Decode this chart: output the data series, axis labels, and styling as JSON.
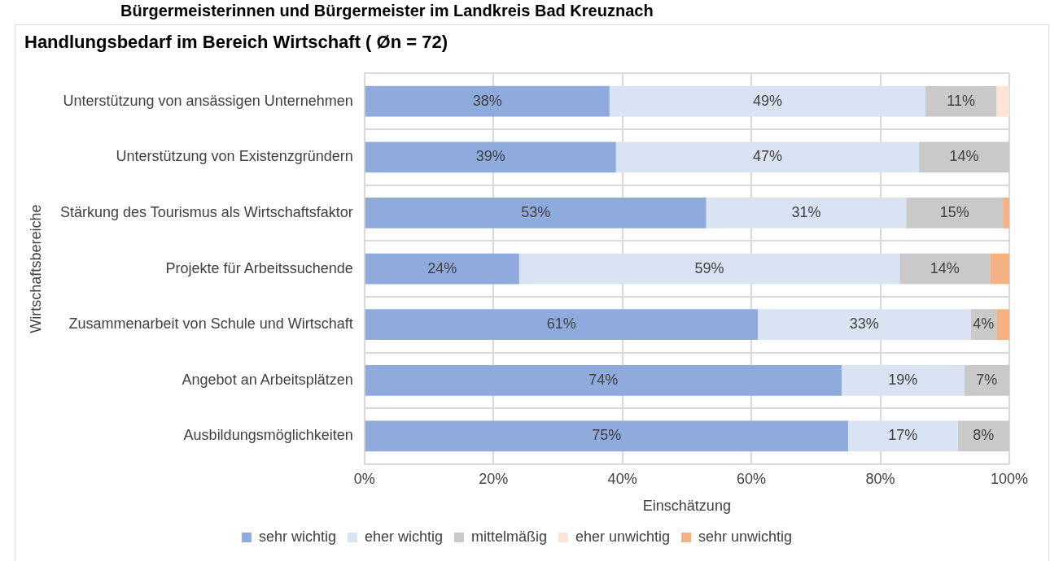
{
  "chart_data": {
    "type": "bar",
    "orientation": "horizontal",
    "stacked": true,
    "title": "Handlungsbedarf im Bereich Wirtschaft ( Øn = 72)",
    "annotations": [
      "Bürgermeisterinnen und Bürgermeister im Landkreis Bad Kreuznach"
    ],
    "categories": [
      "Unterstützung von ansässigen Unternehmen",
      "Unterstützung von Existenzgründern",
      "Stärkung des Tourismus als Wirtschaftsfaktor",
      "Projekte für Arbeitssuchende",
      "Zusammenarbeit von Schule und Wirtschaft",
      "Angebot an Arbeitsplätzen",
      "Ausbildungsmöglichkeiten"
    ],
    "series": [
      {
        "name": "sehr wichtig",
        "color": "#8faadc",
        "values": [
          38,
          39,
          53,
          24,
          61,
          74,
          75
        ],
        "value_labels": [
          "38%",
          "39%",
          "53%",
          "24%",
          "61%",
          "74%",
          "75%"
        ]
      },
      {
        "name": "eher wichtig",
        "color": "#dae3f3",
        "values": [
          49,
          47,
          31,
          59,
          33,
          19,
          17
        ],
        "value_labels": [
          "49%",
          "47%",
          "31%",
          "59%",
          "33%",
          "19%",
          "17%"
        ]
      },
      {
        "name": "mittelmäßig",
        "color": "#c9c9c9",
        "values": [
          11,
          14,
          15,
          14,
          4,
          7,
          8
        ],
        "value_labels": [
          "11%",
          "14%",
          "15%",
          "14%",
          "4%",
          "7%",
          "8%"
        ]
      },
      {
        "name": "eher unwichtig",
        "color": "#fbe5d6",
        "values": [
          2,
          null,
          null,
          null,
          null,
          null,
          null
        ],
        "value_labels": [
          null,
          null,
          null,
          null,
          null,
          null,
          null
        ]
      },
      {
        "name": "sehr unwichtig",
        "color": "#f4b183",
        "values": [
          null,
          null,
          1,
          3,
          2,
          null,
          null
        ],
        "value_labels": [
          null,
          null,
          null,
          null,
          null,
          null,
          null
        ]
      }
    ],
    "xlim": [
      0,
      100
    ],
    "xticks": [
      {
        "value": 0,
        "label": "0%"
      },
      {
        "value": 20,
        "label": "20%"
      },
      {
        "value": 40,
        "label": "40%"
      },
      {
        "value": 60,
        "label": "60%"
      },
      {
        "value": 80,
        "label": "80%"
      },
      {
        "value": 100,
        "label": "100%"
      }
    ],
    "xlabel": "Einschätzung",
    "ylabel": "Wirtschaftsbereiche",
    "grid": "x",
    "legend": "bottom"
  }
}
